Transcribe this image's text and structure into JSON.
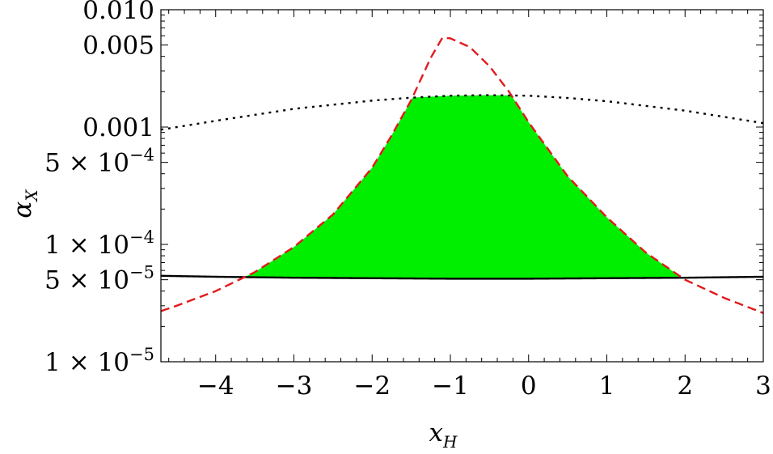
{
  "chart_data": {
    "type": "line",
    "xlabel": {
      "main": "x",
      "sub": "H"
    },
    "ylabel": {
      "main": "α",
      "sub": "X"
    },
    "xlim": [
      -4.7,
      3.0
    ],
    "ylim": [
      1e-05,
      0.01
    ],
    "yscale": "log",
    "grid": false,
    "x_ticks": [
      {
        "value": -4,
        "label": "−4"
      },
      {
        "value": -3,
        "label": "−3"
      },
      {
        "value": -2,
        "label": "−2"
      },
      {
        "value": -1,
        "label": "−1"
      },
      {
        "value": 0,
        "label": "0"
      },
      {
        "value": 1,
        "label": "1"
      },
      {
        "value": 2,
        "label": "2"
      },
      {
        "value": 3,
        "label": "3"
      }
    ],
    "y_ticks": [
      {
        "value": 0.01,
        "label": "0.010"
      },
      {
        "value": 0.005,
        "label": "0.005"
      },
      {
        "value": 0.001,
        "label": "0.001"
      },
      {
        "value": 0.0005,
        "mant": "5 × 10",
        "exp": "−4"
      },
      {
        "value": 0.0001,
        "mant": "1 × 10",
        "exp": "−4"
      },
      {
        "value": 5e-05,
        "mant": "5 × 10",
        "exp": "−5"
      },
      {
        "value": 1e-05,
        "mant": "1 × 10",
        "exp": "−5"
      }
    ],
    "series": [
      {
        "style": "solid",
        "color": "#000000",
        "x": [
          -4.7,
          -4.0,
          -3.0,
          -2.0,
          -1.0,
          0.0,
          1.0,
          2.0,
          3.0
        ],
        "y": [
          5.4e-05,
          5.3e-05,
          5.2e-05,
          5.15e-05,
          5.1e-05,
          5.1e-05,
          5.15e-05,
          5.2e-05,
          5.3e-05
        ]
      },
      {
        "style": "dotted",
        "color": "#000000",
        "x": [
          -4.7,
          -4.0,
          -3.0,
          -2.0,
          -1.5,
          -1.0,
          -0.5,
          0.0,
          0.5,
          1.0,
          2.0,
          3.0
        ],
        "y": [
          0.00095,
          0.00113,
          0.00143,
          0.00168,
          0.00178,
          0.00185,
          0.00187,
          0.00185,
          0.00177,
          0.00166,
          0.00138,
          0.00108
        ]
      },
      {
        "style": "dashed",
        "color": "#e31a1c",
        "x": [
          -4.7,
          -4.5,
          -4.0,
          -3.5,
          -3.0,
          -2.5,
          -2.0,
          -1.75,
          -1.5,
          -1.25,
          -1.1,
          -1.0,
          -0.75,
          -0.5,
          -0.25,
          0.0,
          0.5,
          1.0,
          1.5,
          2.0,
          2.5,
          3.0
        ],
        "y": [
          2.7e-05,
          3e-05,
          4e-05,
          5.8e-05,
          9.5e-05,
          0.00018,
          0.00045,
          0.00085,
          0.0017,
          0.0039,
          0.0058,
          0.0057,
          0.0048,
          0.0033,
          0.002,
          0.0011,
          0.00038,
          0.00017,
          8.5e-05,
          5e-05,
          3.5e-05,
          2.6e-05
        ]
      }
    ],
    "shaded_region": {
      "color": "#00ee00",
      "description": "between solid curve and min(dashed, dotted) where dashed exceeds solid"
    }
  }
}
